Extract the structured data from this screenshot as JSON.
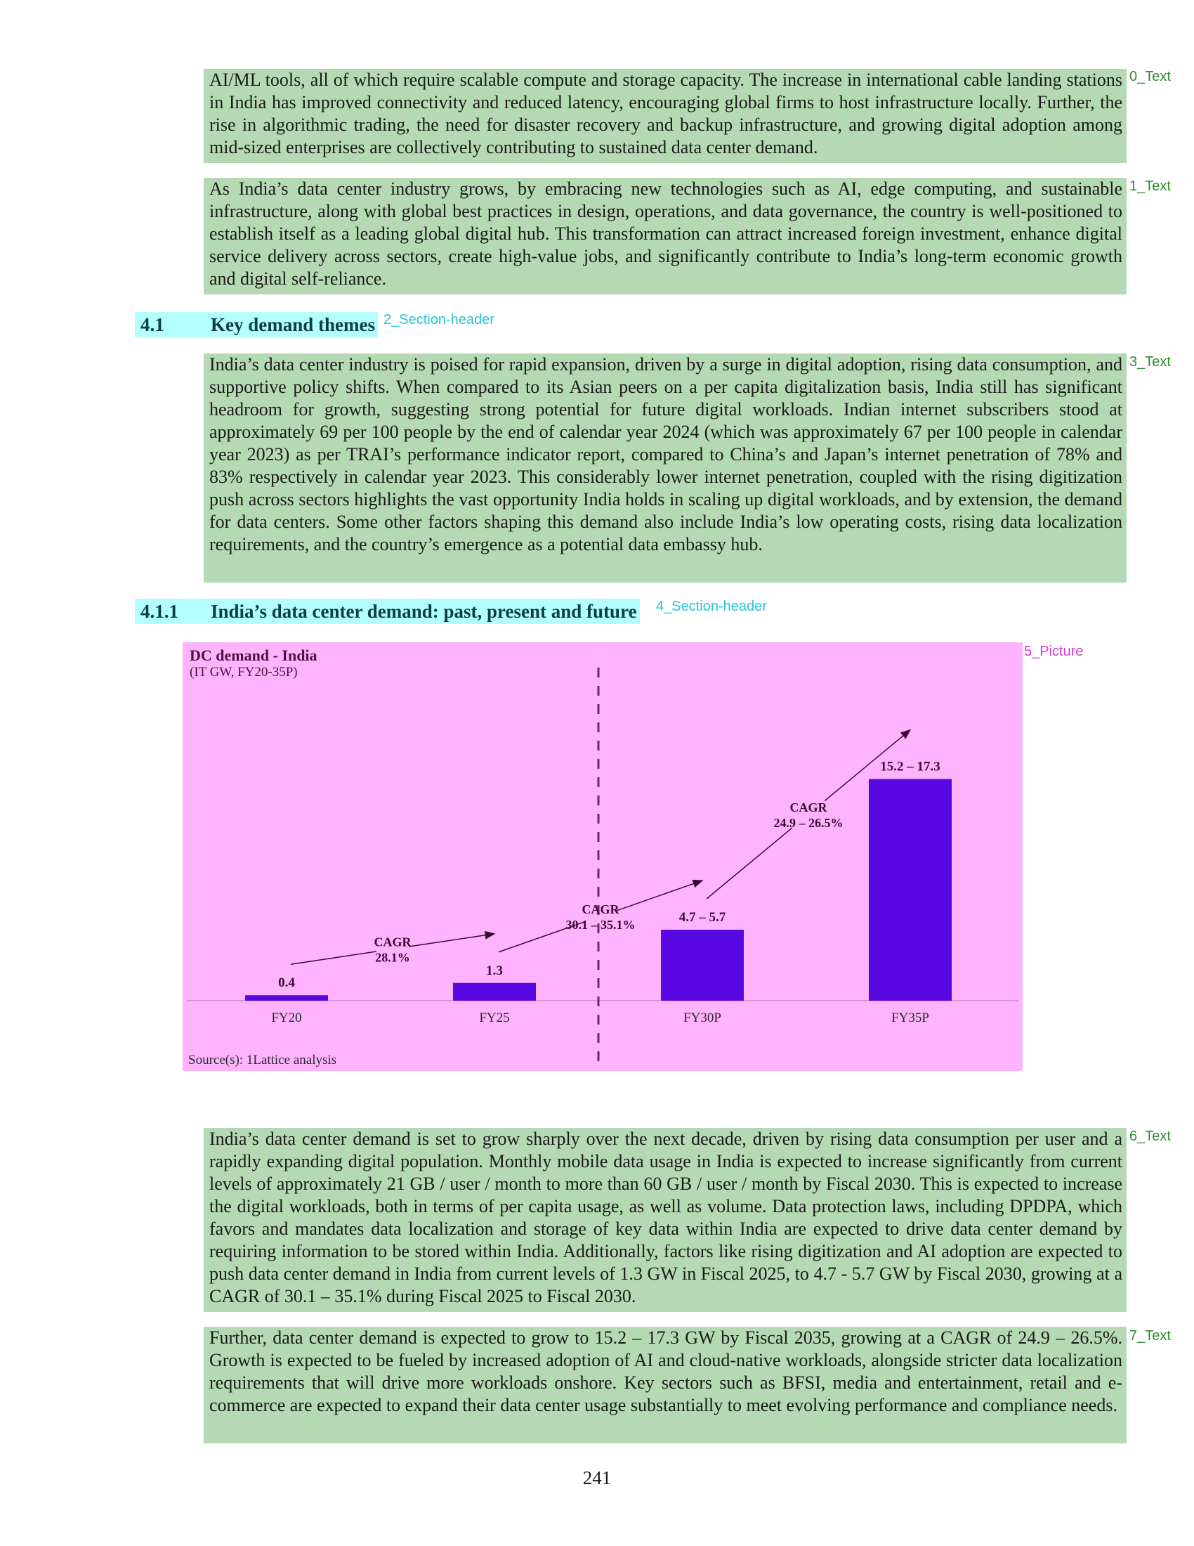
{
  "blocks": {
    "p0": {
      "tag": "0_Text",
      "text": "AI/ML tools, all of which require scalable compute and storage capacity. The increase in international cable landing stations in India has improved connectivity and reduced latency, encouraging global firms to host infrastructure locally. Further, the rise in algorithmic trading, the need for disaster recovery and backup infrastructure, and growing digital adoption among mid-sized enterprises are collectively contributing to sustained data center demand."
    },
    "p1": {
      "tag": "1_Text",
      "text": "As India’s data center industry grows, by embracing new technologies such as AI, edge computing, and sustainable infrastructure, along with global best practices in design, operations, and data governance, the country is well-positioned to establish itself as a leading global digital hub. This transformation can attract increased foreign investment, enhance digital service delivery across sectors, create high-value jobs, and significantly contribute to India’s long-term economic growth and digital self-reliance."
    },
    "h2": {
      "tag": "2_Section-header",
      "number": "4.1",
      "title": "Key demand themes"
    },
    "p3": {
      "tag": "3_Text",
      "text": "India’s data center industry is poised for rapid expansion, driven by a surge in digital adoption, rising data consumption, and supportive policy shifts. When compared to its Asian peers on a per capita digitalization basis, India still has significant headroom for growth, suggesting strong potential for future digital workloads. Indian internet subscribers stood at approximately 69 per 100 people by the end of calendar year 2024 (which was approximately 67 per 100 people in calendar year 2023) as per TRAI’s performance indicator report, compared to China’s and Japan’s internet penetration of 78% and 83% respectively in calendar year 2023. This considerably lower internet penetration, coupled with the rising digitization push across sectors highlights the vast opportunity India holds in scaling up digital workloads, and by extension, the demand for data centers. Some other factors shaping this demand also include India’s low operating costs, rising data localization requirements, and the country’s emergence as a potential data embassy hub."
    },
    "h4": {
      "tag": "4_Section-header",
      "number": "4.1.1",
      "title": "India’s data center demand: past, present and future"
    },
    "pic5": {
      "tag": "5_Picture"
    },
    "p6": {
      "tag": "6_Text",
      "text": "India’s data center demand is set to grow sharply over the next decade, driven by rising data consumption per user and a rapidly expanding digital population. Monthly mobile data usage in India is expected to increase significantly from current levels of approximately 21 GB / user / month to more than 60 GB / user / month by Fiscal 2030. This is expected to increase the digital workloads, both in terms of per capita usage, as well as volume. Data protection laws, including DPDPA, which favors and mandates data localization and storage of key data within India are expected to drive data center demand by requiring information to be stored within India. Additionally, factors like rising digitization and AI adoption are expected to push data center demand in India from current levels of 1.3 GW in Fiscal 2025, to 4.7 - 5.7 GW by Fiscal 2030, growing at a CAGR of 30.1 – 35.1% during Fiscal 2025 to Fiscal 2030."
    },
    "p7": {
      "tag": "7_Text",
      "text": "Further, data center demand is expected to grow to 15.2 – 17.3 GW by Fiscal 2035, growing at a CAGR of 24.9 – 26.5%. Growth is expected to be fueled by increased adoption of AI and cloud-native workloads, alongside stricter data localization requirements that will drive more workloads onshore. Key sectors such as BFSI, media and entertainment, retail and e-commerce are expected to expand their data center usage substantially to meet evolving performance and compliance needs."
    }
  },
  "chart_data": {
    "type": "bar",
    "title": "DC demand - India",
    "subtitle": "(IT GW, FY20-35P)",
    "categories": [
      "FY20",
      "FY25",
      "FY30P",
      "FY35P"
    ],
    "values": [
      0.4,
      1.3,
      5.2,
      16.25
    ],
    "data_labels": [
      "0.4",
      "1.3",
      "4.7 – 5.7",
      "15.2 – 17.3"
    ],
    "ylim": [
      0,
      17
    ],
    "bar_color": "#5808e0",
    "divider_between": [
      "FY25",
      "FY30P"
    ],
    "annotations": [
      {
        "from": "FY20",
        "to": "FY25",
        "line1": "CAGR",
        "line2": "28.1%"
      },
      {
        "from": "FY25",
        "to": "FY30P",
        "line1": "CAGR",
        "line2": "30.1 – 35.1%"
      },
      {
        "from": "FY30P",
        "to": "FY35P",
        "line1": "CAGR",
        "line2": "24.9 – 26.5%"
      }
    ],
    "source": "Source(s): 1Lattice analysis"
  },
  "page": {
    "number": "241"
  }
}
